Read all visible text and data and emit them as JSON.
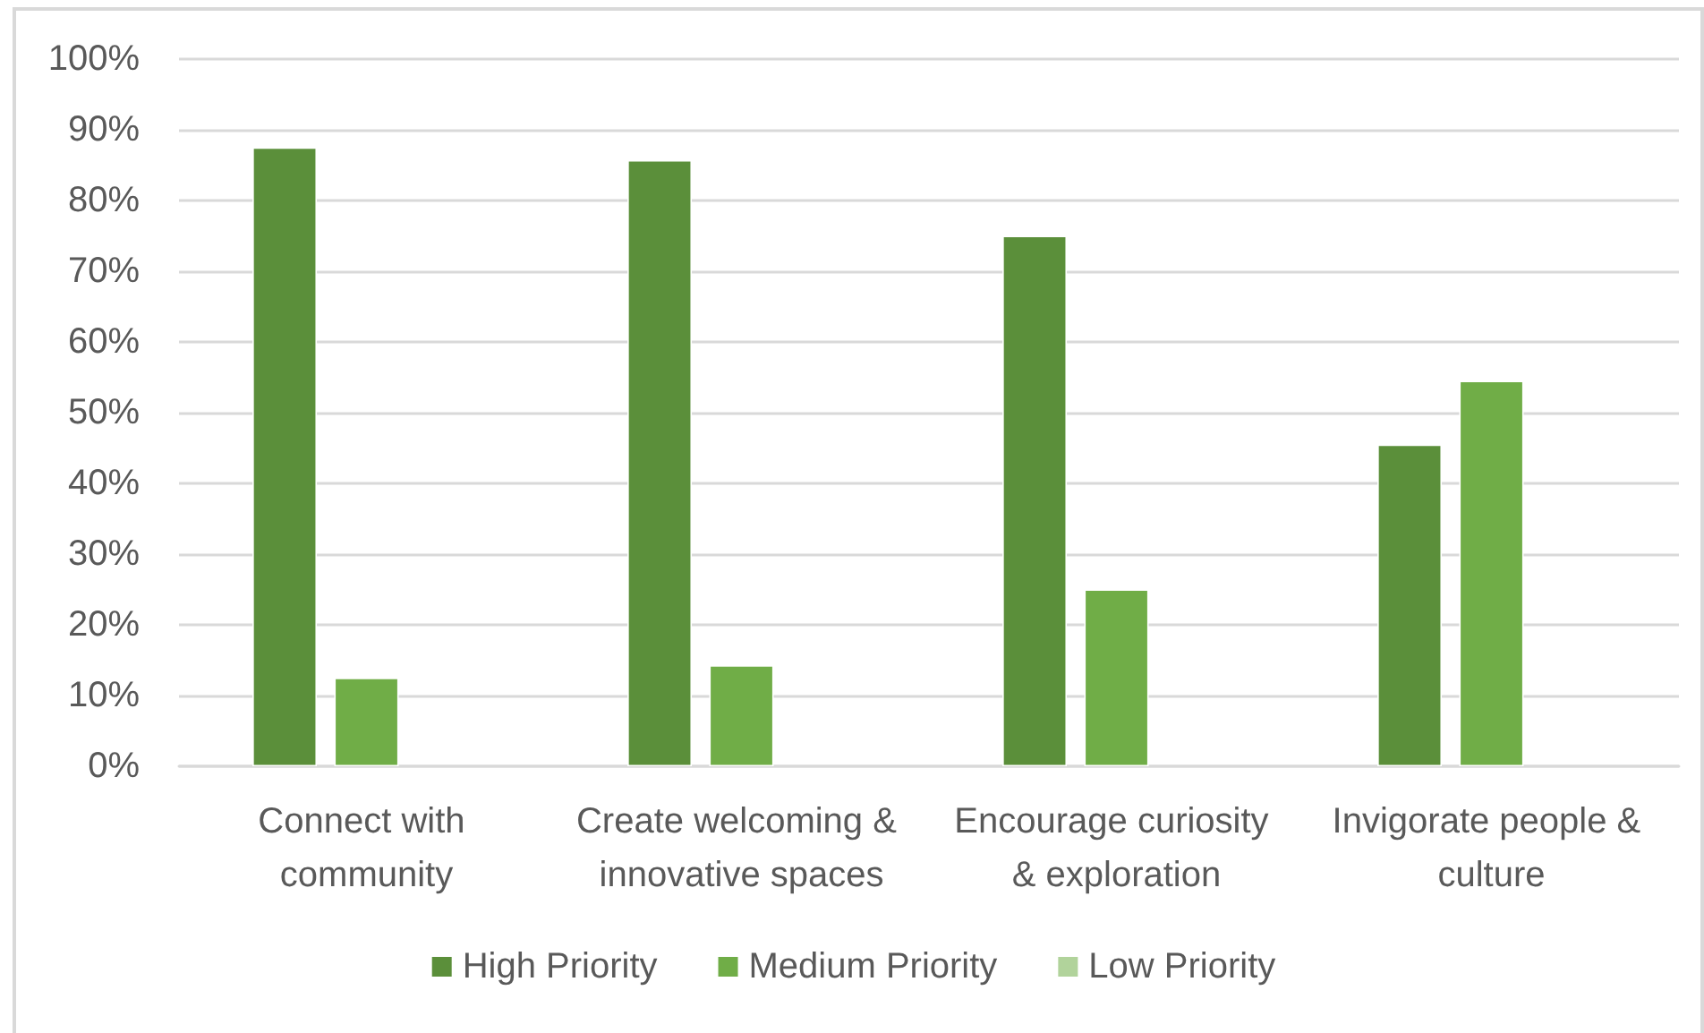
{
  "chart_data": {
    "type": "bar",
    "categories": [
      "Connect with community",
      "Create welcoming & innovative spaces",
      "Encourage curiosity & exploration",
      "Invigorate people & culture"
    ],
    "series": [
      {
        "name": "High Priority",
        "color": "#5b8f3a",
        "values": [
          87.5,
          85.7,
          75,
          45.5
        ]
      },
      {
        "name": "Medium Priority",
        "color": "#70ad47",
        "values": [
          12.5,
          14.3,
          25,
          54.5
        ]
      },
      {
        "name": "Low Priority",
        "color": "#b1d39b",
        "values": [
          null,
          null,
          null,
          null
        ]
      }
    ],
    "ylim": [
      0,
      100
    ],
    "yticks": [
      {
        "value": 0,
        "label": "0%"
      },
      {
        "value": 10,
        "label": "10%"
      },
      {
        "value": 20,
        "label": "20%"
      },
      {
        "value": 30,
        "label": "30%"
      },
      {
        "value": 40,
        "label": "40%"
      },
      {
        "value": 50,
        "label": "50%"
      },
      {
        "value": 60,
        "label": "60%"
      },
      {
        "value": 70,
        "label": "70%"
      },
      {
        "value": 80,
        "label": "80%"
      },
      {
        "value": 90,
        "label": "90%"
      },
      {
        "value": 100,
        "label": "100%"
      }
    ],
    "grid": "y",
    "legend": "bottom"
  }
}
